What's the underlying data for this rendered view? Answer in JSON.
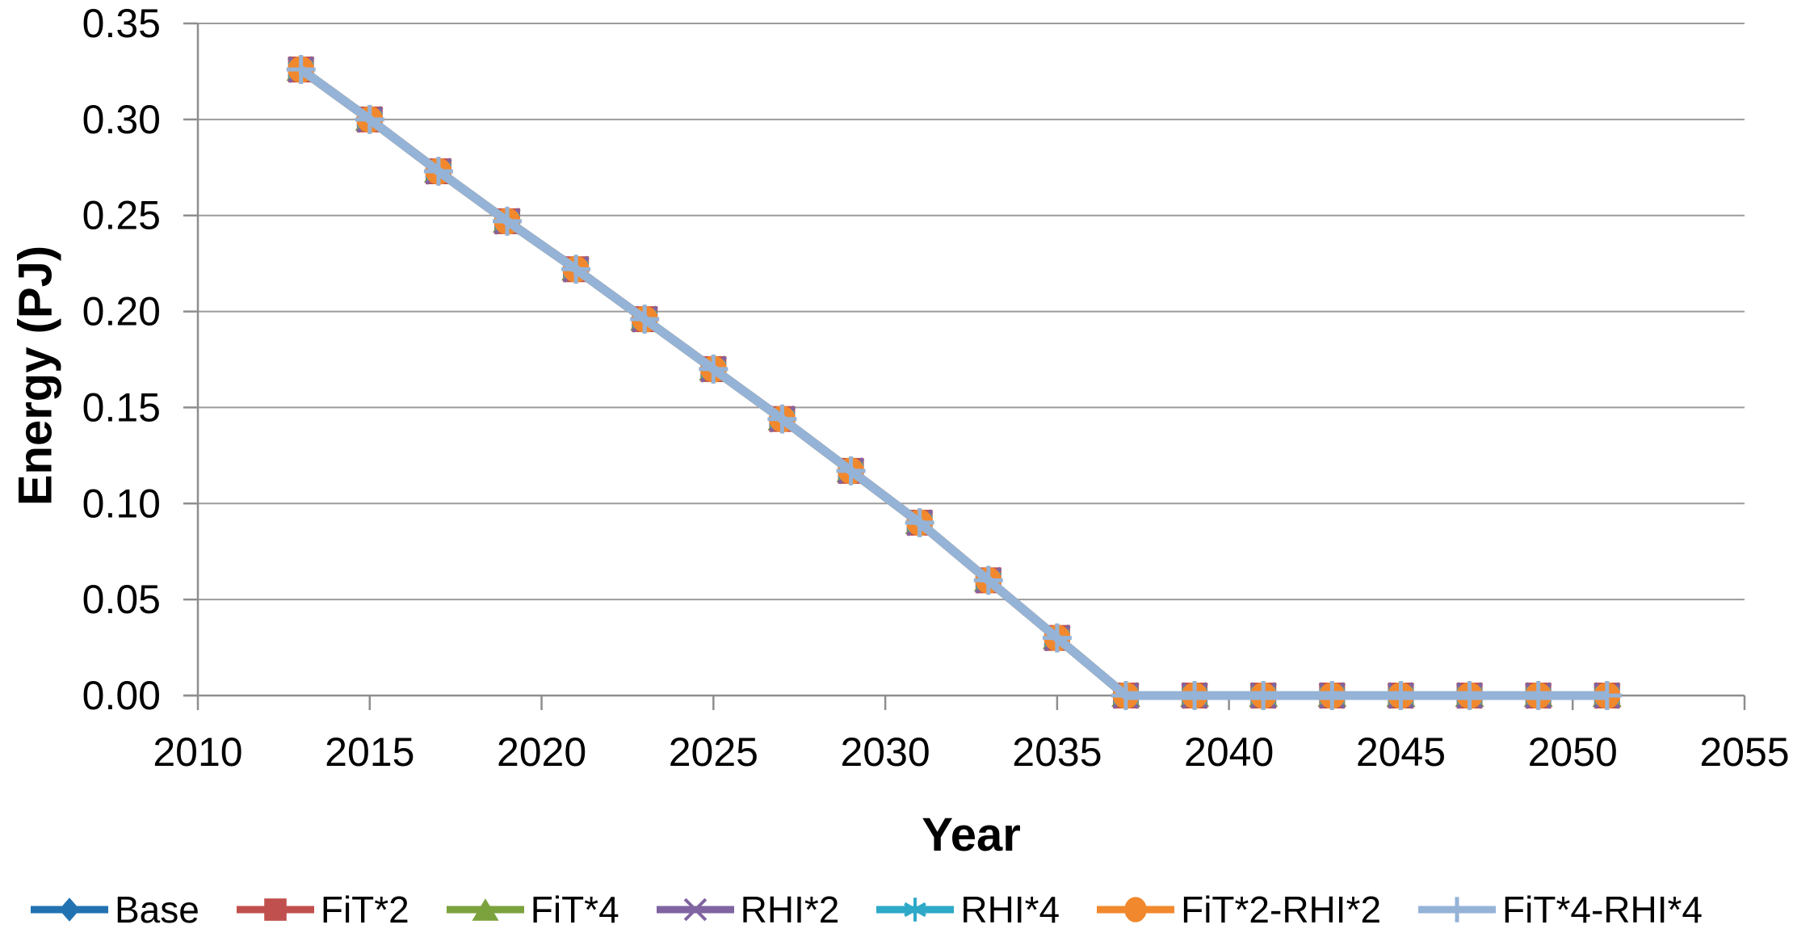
{
  "chart_data": {
    "type": "line",
    "title": "",
    "xlabel": "Year",
    "ylabel": "Energy (PJ)",
    "x": [
      2013,
      2015,
      2017,
      2019,
      2021,
      2023,
      2025,
      2027,
      2029,
      2031,
      2033,
      2035,
      2037,
      2039,
      2041,
      2043,
      2045,
      2047,
      2049,
      2051
    ],
    "series": [
      {
        "name": "Base",
        "color": "#2272B2",
        "marker": "diamond",
        "values": [
          0.326,
          0.3,
          0.273,
          0.247,
          0.222,
          0.196,
          0.17,
          0.144,
          0.117,
          0.09,
          0.06,
          0.03,
          0,
          0,
          0,
          0,
          0,
          0,
          0,
          0
        ]
      },
      {
        "name": "FiT*2",
        "color": "#C0504D",
        "marker": "square",
        "values": [
          0.326,
          0.3,
          0.273,
          0.247,
          0.222,
          0.196,
          0.17,
          0.144,
          0.117,
          0.09,
          0.06,
          0.03,
          0,
          0,
          0,
          0,
          0,
          0,
          0,
          0
        ]
      },
      {
        "name": "FiT*4",
        "color": "#7BA23D",
        "marker": "triangle",
        "values": [
          0.326,
          0.3,
          0.273,
          0.247,
          0.222,
          0.196,
          0.17,
          0.144,
          0.117,
          0.09,
          0.06,
          0.03,
          0,
          0,
          0,
          0,
          0,
          0,
          0,
          0
        ]
      },
      {
        "name": "RHI*2",
        "color": "#8064A2",
        "marker": "x",
        "values": [
          0.326,
          0.3,
          0.273,
          0.247,
          0.222,
          0.196,
          0.17,
          0.144,
          0.117,
          0.09,
          0.06,
          0.03,
          0,
          0,
          0,
          0,
          0,
          0,
          0,
          0
        ]
      },
      {
        "name": "RHI*4",
        "color": "#2EA9C7",
        "marker": "asterisk",
        "values": [
          0.326,
          0.3,
          0.273,
          0.247,
          0.222,
          0.196,
          0.17,
          0.144,
          0.117,
          0.09,
          0.06,
          0.03,
          0,
          0,
          0,
          0,
          0,
          0,
          0,
          0
        ]
      },
      {
        "name": "FiT*2-RHI*2",
        "color": "#F1882D",
        "marker": "circle",
        "values": [
          0.326,
          0.3,
          0.273,
          0.247,
          0.222,
          0.196,
          0.17,
          0.144,
          0.117,
          0.09,
          0.06,
          0.03,
          0,
          0,
          0,
          0,
          0,
          0,
          0,
          0
        ]
      },
      {
        "name": "FiT*4-RHI*4",
        "color": "#95B3D7",
        "marker": "plus",
        "values": [
          0.326,
          0.3,
          0.273,
          0.247,
          0.222,
          0.196,
          0.17,
          0.144,
          0.117,
          0.09,
          0.06,
          0.03,
          0,
          0,
          0,
          0,
          0,
          0,
          0,
          0
        ]
      }
    ],
    "all_series_overlap": true,
    "xlim": [
      2010,
      2055
    ],
    "ylim": [
      0,
      0.35
    ],
    "x_ticks": [
      "2010",
      "2015",
      "2020",
      "2025",
      "2030",
      "2035",
      "2040",
      "2045",
      "2050",
      "2055"
    ],
    "y_ticks": [
      "0.00",
      "0.05",
      "0.10",
      "0.15",
      "0.20",
      "0.25",
      "0.30",
      "0.35"
    ],
    "grid": "horizontal",
    "legend_position": "bottom",
    "gridline_color": "#9C9C9C",
    "axis_color": "#8E8E8E",
    "text_color": "#000000"
  }
}
